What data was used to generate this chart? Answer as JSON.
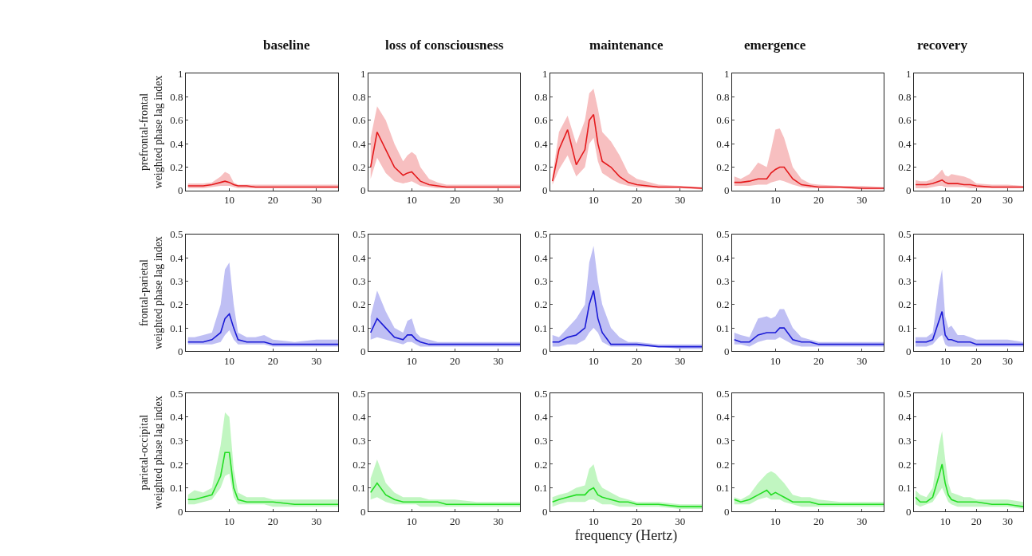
{
  "chart_data": [
    {
      "type": "line",
      "title": "baseline",
      "ylabel": "prefrontal-frontal\nweighted phase lag index",
      "x": [
        0.5,
        2,
        4,
        6,
        8,
        9,
        10,
        11,
        12,
        14,
        16,
        18,
        20,
        25,
        30,
        35
      ],
      "xlim": [
        0,
        35
      ],
      "xticks": [
        10,
        20,
        30
      ],
      "ylim": [
        0,
        1
      ],
      "yticks": [
        0,
        0.2,
        0.4,
        0.6,
        0.8,
        1
      ],
      "series": [
        {
          "color": "#e41a1c",
          "values": [
            0.04,
            0.04,
            0.04,
            0.05,
            0.07,
            0.08,
            0.07,
            0.05,
            0.04,
            0.04,
            0.03,
            0.03,
            0.03,
            0.03,
            0.03,
            0.03
          ],
          "lower": [
            0.02,
            0.02,
            0.02,
            0.03,
            0.04,
            0.04,
            0.04,
            0.03,
            0.02,
            0.02,
            0.02,
            0.02,
            0.02,
            0.02,
            0.02,
            0.02
          ],
          "upper": [
            0.06,
            0.06,
            0.06,
            0.07,
            0.12,
            0.16,
            0.14,
            0.07,
            0.05,
            0.05,
            0.05,
            0.05,
            0.05,
            0.05,
            0.05,
            0.05
          ]
        }
      ]
    },
    {
      "type": "line",
      "title": "loss of consciousness",
      "x": [
        0.5,
        2,
        4,
        6,
        8,
        9,
        10,
        11,
        12,
        14,
        16,
        18,
        20,
        25,
        30,
        35
      ],
      "xlim": [
        0,
        35
      ],
      "xticks": [
        10,
        20,
        30
      ],
      "ylim": [
        0,
        1
      ],
      "yticks": [
        0,
        0.2,
        0.4,
        0.6,
        0.8,
        1
      ],
      "series": [
        {
          "color": "#e41a1c",
          "values": [
            0.2,
            0.5,
            0.35,
            0.2,
            0.13,
            0.15,
            0.16,
            0.12,
            0.08,
            0.05,
            0.04,
            0.03,
            0.03,
            0.03,
            0.03,
            0.03
          ],
          "lower": [
            0.1,
            0.28,
            0.15,
            0.08,
            0.06,
            0.07,
            0.08,
            0.06,
            0.04,
            0.03,
            0.02,
            0.02,
            0.02,
            0.02,
            0.02,
            0.02
          ],
          "upper": [
            0.45,
            0.72,
            0.6,
            0.4,
            0.25,
            0.3,
            0.33,
            0.3,
            0.2,
            0.1,
            0.07,
            0.05,
            0.05,
            0.05,
            0.05,
            0.05
          ]
        }
      ]
    },
    {
      "type": "line",
      "title": "maintenance",
      "x": [
        0.5,
        2,
        4,
        6,
        8,
        9,
        10,
        11,
        12,
        14,
        16,
        18,
        20,
        25,
        30,
        35
      ],
      "xlim": [
        0,
        35
      ],
      "xticks": [
        10,
        20,
        30
      ],
      "ylim": [
        0,
        1
      ],
      "yticks": [
        0,
        0.2,
        0.4,
        0.6,
        0.8,
        1
      ],
      "series": [
        {
          "color": "#e41a1c",
          "values": [
            0.08,
            0.35,
            0.52,
            0.22,
            0.35,
            0.6,
            0.65,
            0.4,
            0.25,
            0.2,
            0.12,
            0.07,
            0.05,
            0.03,
            0.03,
            0.02
          ],
          "lower": [
            0.05,
            0.18,
            0.3,
            0.12,
            0.2,
            0.4,
            0.45,
            0.25,
            0.15,
            0.1,
            0.06,
            0.04,
            0.03,
            0.02,
            0.02,
            0.01
          ],
          "upper": [
            0.12,
            0.5,
            0.64,
            0.4,
            0.6,
            0.83,
            0.87,
            0.7,
            0.5,
            0.42,
            0.3,
            0.15,
            0.1,
            0.05,
            0.04,
            0.03
          ]
        }
      ]
    },
    {
      "type": "line",
      "title": "emergence",
      "x": [
        0.5,
        2,
        4,
        6,
        8,
        9,
        10,
        11,
        12,
        14,
        16,
        18,
        20,
        25,
        30,
        35
      ],
      "xlim": [
        0,
        35
      ],
      "xticks": [
        10,
        20,
        30
      ],
      "ylim": [
        0,
        1
      ],
      "yticks": [
        0,
        0.2,
        0.4,
        0.6,
        0.8,
        1
      ],
      "series": [
        {
          "color": "#e41a1c",
          "values": [
            0.07,
            0.07,
            0.08,
            0.1,
            0.1,
            0.15,
            0.18,
            0.2,
            0.2,
            0.1,
            0.05,
            0.04,
            0.03,
            0.03,
            0.02,
            0.02
          ],
          "lower": [
            0.04,
            0.04,
            0.04,
            0.05,
            0.05,
            0.07,
            0.08,
            0.09,
            0.08,
            0.05,
            0.03,
            0.02,
            0.02,
            0.02,
            0.01,
            0.01
          ],
          "upper": [
            0.12,
            0.1,
            0.14,
            0.24,
            0.2,
            0.35,
            0.52,
            0.53,
            0.45,
            0.2,
            0.1,
            0.06,
            0.05,
            0.04,
            0.04,
            0.03
          ]
        }
      ]
    },
    {
      "type": "line",
      "title": "recovery",
      "x": [
        0.5,
        2,
        4,
        6,
        8,
        9,
        10,
        11,
        12,
        14,
        16,
        18,
        20,
        25,
        30,
        35
      ],
      "xlim": [
        0,
        35
      ],
      "xticks": [
        10,
        20,
        30
      ],
      "ylim": [
        0,
        1
      ],
      "yticks": [
        0,
        0.2,
        0.4,
        0.6,
        0.8,
        1
      ],
      "series": [
        {
          "color": "#e41a1c",
          "values": [
            0.05,
            0.05,
            0.05,
            0.06,
            0.08,
            0.09,
            0.07,
            0.06,
            0.06,
            0.06,
            0.05,
            0.05,
            0.04,
            0.03,
            0.03,
            0.03
          ],
          "lower": [
            0.02,
            0.02,
            0.02,
            0.03,
            0.04,
            0.04,
            0.03,
            0.03,
            0.03,
            0.03,
            0.03,
            0.02,
            0.02,
            0.02,
            0.02,
            0.02
          ],
          "upper": [
            0.09,
            0.08,
            0.08,
            0.1,
            0.15,
            0.18,
            0.13,
            0.12,
            0.14,
            0.13,
            0.12,
            0.1,
            0.06,
            0.05,
            0.05,
            0.04
          ]
        }
      ]
    },
    {
      "type": "line",
      "ylabel": "frontal-parietal\nweighted phase lag index",
      "x": [
        0.5,
        2,
        4,
        6,
        8,
        9,
        10,
        11,
        12,
        14,
        16,
        18,
        20,
        25,
        30,
        35
      ],
      "xlim": [
        0,
        35
      ],
      "xticks": [
        10,
        20,
        30
      ],
      "ylim": [
        0,
        0.5
      ],
      "yticks": [
        0,
        0.1,
        0.2,
        0.3,
        0.4,
        0.5
      ],
      "series": [
        {
          "color": "#1a1ad6",
          "values": [
            0.04,
            0.04,
            0.04,
            0.05,
            0.08,
            0.14,
            0.16,
            0.1,
            0.05,
            0.04,
            0.04,
            0.04,
            0.03,
            0.03,
            0.03,
            0.03
          ],
          "lower": [
            0.03,
            0.03,
            0.03,
            0.03,
            0.04,
            0.07,
            0.09,
            0.05,
            0.03,
            0.03,
            0.03,
            0.03,
            0.02,
            0.02,
            0.02,
            0.02
          ],
          "upper": [
            0.06,
            0.06,
            0.07,
            0.08,
            0.2,
            0.35,
            0.38,
            0.2,
            0.08,
            0.06,
            0.06,
            0.07,
            0.05,
            0.04,
            0.05,
            0.05
          ]
        }
      ]
    },
    {
      "type": "line",
      "x": [
        0.5,
        2,
        4,
        6,
        8,
        9,
        10,
        11,
        12,
        14,
        16,
        18,
        20,
        25,
        30,
        35
      ],
      "xlim": [
        0,
        35
      ],
      "xticks": [
        10,
        20,
        30
      ],
      "ylim": [
        0,
        0.5
      ],
      "yticks": [
        0,
        0.1,
        0.2,
        0.3,
        0.4,
        0.5
      ],
      "series": [
        {
          "color": "#1a1ad6",
          "values": [
            0.08,
            0.14,
            0.1,
            0.06,
            0.05,
            0.07,
            0.07,
            0.05,
            0.04,
            0.03,
            0.03,
            0.03,
            0.03,
            0.03,
            0.03,
            0.03
          ],
          "lower": [
            0.05,
            0.06,
            0.05,
            0.04,
            0.03,
            0.04,
            0.04,
            0.03,
            0.02,
            0.02,
            0.02,
            0.02,
            0.02,
            0.02,
            0.02,
            0.02
          ],
          "upper": [
            0.15,
            0.26,
            0.17,
            0.1,
            0.08,
            0.13,
            0.14,
            0.08,
            0.06,
            0.05,
            0.04,
            0.04,
            0.04,
            0.04,
            0.04,
            0.04
          ]
        }
      ]
    },
    {
      "type": "line",
      "x": [
        0.5,
        2,
        4,
        6,
        8,
        9,
        10,
        11,
        12,
        14,
        16,
        18,
        20,
        25,
        30,
        35
      ],
      "xlim": [
        0,
        35
      ],
      "xticks": [
        10,
        20,
        30
      ],
      "ylim": [
        0,
        0.5
      ],
      "yticks": [
        0,
        0.1,
        0.2,
        0.3,
        0.4,
        0.5
      ],
      "series": [
        {
          "color": "#1a1ad6",
          "values": [
            0.04,
            0.04,
            0.06,
            0.07,
            0.1,
            0.2,
            0.26,
            0.14,
            0.08,
            0.03,
            0.03,
            0.03,
            0.03,
            0.02,
            0.02,
            0.02
          ],
          "lower": [
            0.02,
            0.02,
            0.03,
            0.03,
            0.05,
            0.08,
            0.1,
            0.08,
            0.04,
            0.02,
            0.02,
            0.02,
            0.02,
            0.02,
            0.01,
            0.01
          ],
          "upper": [
            0.07,
            0.06,
            0.1,
            0.14,
            0.2,
            0.38,
            0.45,
            0.3,
            0.2,
            0.1,
            0.06,
            0.04,
            0.04,
            0.03,
            0.03,
            0.03
          ]
        }
      ]
    },
    {
      "type": "line",
      "x": [
        0.5,
        2,
        4,
        6,
        8,
        9,
        10,
        11,
        12,
        14,
        16,
        18,
        20,
        25,
        30,
        35
      ],
      "xlim": [
        0,
        35
      ],
      "xticks": [
        10,
        20,
        30
      ],
      "ylim": [
        0,
        0.5
      ],
      "yticks": [
        0,
        0.1,
        0.2,
        0.3,
        0.4,
        0.5
      ],
      "series": [
        {
          "color": "#1a1ad6",
          "values": [
            0.05,
            0.04,
            0.04,
            0.07,
            0.08,
            0.08,
            0.08,
            0.1,
            0.1,
            0.05,
            0.04,
            0.04,
            0.03,
            0.03,
            0.03,
            0.03
          ],
          "lower": [
            0.03,
            0.03,
            0.02,
            0.04,
            0.05,
            0.05,
            0.05,
            0.06,
            0.05,
            0.03,
            0.02,
            0.02,
            0.02,
            0.02,
            0.02,
            0.02
          ],
          "upper": [
            0.08,
            0.07,
            0.06,
            0.14,
            0.15,
            0.14,
            0.15,
            0.18,
            0.18,
            0.1,
            0.06,
            0.05,
            0.04,
            0.04,
            0.04,
            0.04
          ]
        }
      ]
    },
    {
      "type": "line",
      "x": [
        0.5,
        2,
        4,
        6,
        8,
        9,
        10,
        11,
        12,
        14,
        16,
        18,
        20,
        25,
        30,
        35
      ],
      "xlim": [
        0,
        35
      ],
      "xticks": [
        10,
        20,
        30
      ],
      "ylim": [
        0,
        0.5
      ],
      "yticks": [
        0,
        0.1,
        0.2,
        0.3,
        0.4,
        0.5
      ],
      "series": [
        {
          "color": "#1a1ad6",
          "values": [
            0.04,
            0.04,
            0.04,
            0.05,
            0.13,
            0.17,
            0.07,
            0.05,
            0.05,
            0.04,
            0.04,
            0.04,
            0.03,
            0.03,
            0.03,
            0.03
          ],
          "lower": [
            0.02,
            0.02,
            0.02,
            0.03,
            0.06,
            0.07,
            0.03,
            0.02,
            0.02,
            0.02,
            0.02,
            0.02,
            0.02,
            0.02,
            0.02,
            0.02
          ],
          "upper": [
            0.06,
            0.06,
            0.06,
            0.08,
            0.28,
            0.35,
            0.15,
            0.1,
            0.11,
            0.07,
            0.07,
            0.06,
            0.05,
            0.05,
            0.05,
            0.04
          ]
        }
      ]
    },
    {
      "type": "line",
      "ylabel": "parietal-occipital\nweighted phase lag index",
      "x": [
        0.5,
        2,
        4,
        6,
        8,
        9,
        10,
        11,
        12,
        14,
        16,
        18,
        20,
        25,
        30,
        35
      ],
      "xlim": [
        0,
        35
      ],
      "xticks": [
        10,
        20,
        30
      ],
      "ylim": [
        0,
        0.5
      ],
      "yticks": [
        0,
        0.1,
        0.2,
        0.3,
        0.4,
        0.5
      ],
      "series": [
        {
          "color": "#22dd22",
          "values": [
            0.05,
            0.05,
            0.06,
            0.07,
            0.15,
            0.25,
            0.25,
            0.1,
            0.05,
            0.04,
            0.04,
            0.04,
            0.04,
            0.03,
            0.03,
            0.03
          ],
          "lower": [
            0.03,
            0.03,
            0.04,
            0.05,
            0.1,
            0.15,
            0.16,
            0.06,
            0.03,
            0.03,
            0.03,
            0.03,
            0.02,
            0.02,
            0.02,
            0.02
          ],
          "upper": [
            0.07,
            0.09,
            0.08,
            0.1,
            0.28,
            0.42,
            0.4,
            0.18,
            0.08,
            0.06,
            0.06,
            0.06,
            0.05,
            0.05,
            0.05,
            0.05
          ]
        }
      ]
    },
    {
      "type": "line",
      "x": [
        0.5,
        2,
        4,
        6,
        8,
        9,
        10,
        11,
        12,
        14,
        16,
        18,
        20,
        25,
        30,
        35
      ],
      "xlim": [
        0,
        35
      ],
      "xticks": [
        10,
        20,
        30
      ],
      "ylim": [
        0,
        0.5
      ],
      "yticks": [
        0,
        0.1,
        0.2,
        0.3,
        0.4,
        0.5
      ],
      "series": [
        {
          "color": "#22dd22",
          "values": [
            0.08,
            0.12,
            0.07,
            0.05,
            0.04,
            0.04,
            0.04,
            0.04,
            0.04,
            0.04,
            0.04,
            0.03,
            0.03,
            0.03,
            0.03,
            0.03
          ],
          "lower": [
            0.05,
            0.06,
            0.04,
            0.03,
            0.03,
            0.03,
            0.03,
            0.03,
            0.02,
            0.02,
            0.02,
            0.02,
            0.02,
            0.02,
            0.02,
            0.02
          ],
          "upper": [
            0.14,
            0.22,
            0.12,
            0.08,
            0.06,
            0.06,
            0.06,
            0.06,
            0.06,
            0.05,
            0.05,
            0.05,
            0.05,
            0.04,
            0.04,
            0.04
          ]
        }
      ]
    },
    {
      "type": "line",
      "xlabel": "frequency (Hertz)",
      "x": [
        0.5,
        2,
        4,
        6,
        8,
        9,
        10,
        11,
        12,
        14,
        16,
        18,
        20,
        25,
        30,
        35
      ],
      "xlim": [
        0,
        35
      ],
      "xticks": [
        10,
        20,
        30
      ],
      "ylim": [
        0,
        0.5
      ],
      "yticks": [
        0,
        0.1,
        0.2,
        0.3,
        0.4,
        0.5
      ],
      "series": [
        {
          "color": "#22dd22",
          "values": [
            0.04,
            0.05,
            0.06,
            0.07,
            0.07,
            0.09,
            0.1,
            0.07,
            0.06,
            0.05,
            0.04,
            0.04,
            0.03,
            0.03,
            0.02,
            0.02
          ],
          "lower": [
            0.02,
            0.03,
            0.04,
            0.04,
            0.04,
            0.05,
            0.05,
            0.04,
            0.03,
            0.03,
            0.02,
            0.02,
            0.02,
            0.02,
            0.01,
            0.01
          ],
          "upper": [
            0.06,
            0.07,
            0.08,
            0.1,
            0.11,
            0.18,
            0.2,
            0.13,
            0.1,
            0.08,
            0.06,
            0.05,
            0.04,
            0.04,
            0.03,
            0.03
          ]
        }
      ]
    },
    {
      "type": "line",
      "x": [
        0.5,
        2,
        4,
        6,
        8,
        9,
        10,
        11,
        12,
        14,
        16,
        18,
        20,
        25,
        30,
        35
      ],
      "xlim": [
        0,
        35
      ],
      "xticks": [
        10,
        20,
        30
      ],
      "ylim": [
        0,
        0.5
      ],
      "yticks": [
        0,
        0.1,
        0.2,
        0.3,
        0.4,
        0.5
      ],
      "series": [
        {
          "color": "#22dd22",
          "values": [
            0.05,
            0.04,
            0.05,
            0.07,
            0.09,
            0.07,
            0.08,
            0.07,
            0.06,
            0.04,
            0.04,
            0.04,
            0.03,
            0.03,
            0.03,
            0.03
          ],
          "lower": [
            0.03,
            0.03,
            0.03,
            0.05,
            0.06,
            0.05,
            0.05,
            0.05,
            0.04,
            0.03,
            0.02,
            0.02,
            0.02,
            0.02,
            0.02,
            0.02
          ],
          "upper": [
            0.06,
            0.05,
            0.07,
            0.12,
            0.16,
            0.17,
            0.16,
            0.14,
            0.12,
            0.07,
            0.06,
            0.06,
            0.05,
            0.04,
            0.04,
            0.04
          ]
        }
      ]
    },
    {
      "type": "line",
      "x": [
        0.5,
        2,
        4,
        6,
        8,
        9,
        10,
        11,
        12,
        14,
        16,
        18,
        20,
        25,
        30,
        35
      ],
      "xlim": [
        0,
        35
      ],
      "xticks": [
        10,
        20,
        30
      ],
      "ylim": [
        0,
        0.5
      ],
      "yticks": [
        0,
        0.1,
        0.2,
        0.3,
        0.4,
        0.5
      ],
      "series": [
        {
          "color": "#22dd22",
          "values": [
            0.06,
            0.04,
            0.04,
            0.06,
            0.15,
            0.2,
            0.12,
            0.07,
            0.05,
            0.04,
            0.04,
            0.04,
            0.04,
            0.03,
            0.03,
            0.02
          ],
          "lower": [
            0.03,
            0.02,
            0.03,
            0.04,
            0.08,
            0.1,
            0.07,
            0.04,
            0.03,
            0.02,
            0.02,
            0.02,
            0.02,
            0.02,
            0.02,
            0.01
          ],
          "upper": [
            0.09,
            0.07,
            0.06,
            0.1,
            0.28,
            0.34,
            0.22,
            0.12,
            0.08,
            0.07,
            0.06,
            0.06,
            0.05,
            0.05,
            0.05,
            0.04
          ]
        }
      ]
    }
  ]
}
